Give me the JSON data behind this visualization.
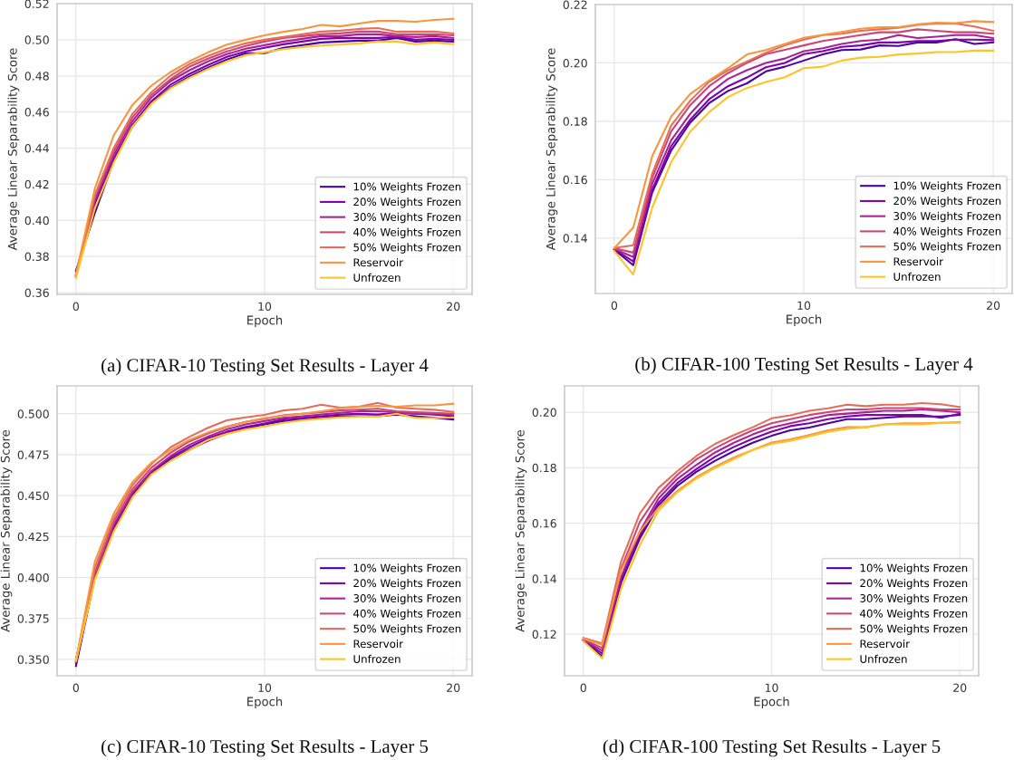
{
  "chart_data": [
    {
      "type": "line",
      "xlabel": "Epoch",
      "ylabel": "Average Linear Separability Score",
      "annotations": [
        "(a) CIFAR-10 Testing Set Results - Layer 4"
      ],
      "legend": "bottom right",
      "grid": true,
      "x": [
        0,
        1,
        2,
        3,
        4,
        5,
        6,
        7,
        8,
        9,
        10,
        11,
        12,
        13,
        14,
        15,
        16,
        17,
        18,
        19,
        20
      ],
      "xlim": [
        -1,
        21
      ],
      "xticks": [
        0,
        10,
        20
      ],
      "ylim": [
        0.359,
        0.52
      ],
      "yticks": [
        {
          "value": 0.36,
          "label": "0.36"
        },
        {
          "value": 0.38,
          "label": "0.38"
        },
        {
          "value": 0.4,
          "label": "0.40"
        },
        {
          "value": 0.42,
          "label": "0.42"
        },
        {
          "value": 0.44,
          "label": "0.44"
        },
        {
          "value": 0.46,
          "label": "0.46"
        },
        {
          "value": 0.48,
          "label": "0.48"
        },
        {
          "value": 0.5,
          "label": "0.50"
        },
        {
          "value": 0.52,
          "label": "0.52"
        }
      ],
      "series": [
        {
          "name": "10% Weights Frozen",
          "color": "#4c02a1",
          "values": [
            0.372,
            0.404,
            0.433,
            0.452,
            0.465,
            0.4735,
            0.4795,
            0.4845,
            0.489,
            0.4925,
            0.4925,
            0.4955,
            0.497,
            0.4985,
            0.499,
            0.4995,
            0.4995,
            0.501,
            0.499,
            0.4995,
            0.499
          ]
        },
        {
          "name": "20% Weights Frozen",
          "color": "#7e03a8",
          "values": [
            0.37,
            0.409,
            0.434,
            0.453,
            0.466,
            0.475,
            0.481,
            0.486,
            0.4905,
            0.4935,
            0.4955,
            0.4975,
            0.499,
            0.5005,
            0.501,
            0.501,
            0.501,
            0.5015,
            0.5,
            0.5005,
            0.5
          ]
        },
        {
          "name": "30% Weights Frozen",
          "color": "#a92395",
          "values": [
            0.369,
            0.411,
            0.436,
            0.455,
            0.468,
            0.477,
            0.483,
            0.488,
            0.492,
            0.495,
            0.497,
            0.499,
            0.5005,
            0.502,
            0.502,
            0.503,
            0.503,
            0.502,
            0.5015,
            0.502,
            0.501
          ]
        },
        {
          "name": "40% Weights Frozen",
          "color": "#cc4778",
          "values": [
            0.369,
            0.413,
            0.438,
            0.457,
            0.4695,
            0.478,
            0.485,
            0.4895,
            0.4935,
            0.4965,
            0.499,
            0.501,
            0.502,
            0.503,
            0.5035,
            0.5045,
            0.5045,
            0.503,
            0.503,
            0.503,
            0.5025
          ]
        },
        {
          "name": "50% Weights Frozen",
          "color": "#e66c5c",
          "values": [
            0.369,
            0.414,
            0.44,
            0.459,
            0.471,
            0.48,
            0.4865,
            0.491,
            0.495,
            0.498,
            0.5,
            0.5015,
            0.503,
            0.5045,
            0.505,
            0.506,
            0.5065,
            0.5045,
            0.5045,
            0.5045,
            0.5035
          ]
        },
        {
          "name": "Reservoir",
          "color": "#f89540",
          "values": [
            0.37,
            0.4175,
            0.447,
            0.464,
            0.4746,
            0.482,
            0.488,
            0.493,
            0.4973,
            0.5,
            0.5024,
            0.5044,
            0.506,
            0.5082,
            0.5074,
            0.509,
            0.5104,
            0.5104,
            0.51,
            0.511,
            0.5116
          ]
        },
        {
          "name": "Unfrozen",
          "color": "#fdc328",
          "values": [
            0.368,
            0.4066,
            0.4318,
            0.452,
            0.4645,
            0.473,
            0.4788,
            0.4838,
            0.488,
            0.4914,
            0.4931,
            0.4948,
            0.496,
            0.4968,
            0.4973,
            0.498,
            0.499,
            0.499,
            0.4976,
            0.4985,
            0.4976
          ]
        }
      ]
    },
    {
      "type": "line",
      "xlabel": "Epoch",
      "ylabel": "Average Linear Separability Score",
      "annotations": [
        "(b) CIFAR-100 Testing Set Results - Layer 4"
      ],
      "legend": "bottom right",
      "grid": true,
      "x": [
        0,
        1,
        2,
        3,
        4,
        5,
        6,
        7,
        8,
        9,
        10,
        11,
        12,
        13,
        14,
        15,
        16,
        17,
        18,
        19,
        20
      ],
      "xlim": [
        -1,
        21
      ],
      "xticks": [
        0,
        10,
        20
      ],
      "ylim": [
        0.121,
        0.22
      ],
      "yticks": [
        {
          "value": 0.14,
          "label": "0.14"
        },
        {
          "value": 0.16,
          "label": "0.16"
        },
        {
          "value": 0.18,
          "label": "0.18"
        },
        {
          "value": 0.2,
          "label": "0.20"
        },
        {
          "value": 0.22,
          "label": "0.22"
        }
      ],
      "series": [
        {
          "name": "10% Weights Frozen",
          "color": "#4c02a1",
          "values": [
            0.136,
            0.1307,
            0.1556,
            0.17,
            0.1795,
            0.1862,
            0.1904,
            0.193,
            0.1971,
            0.1987,
            0.2008,
            0.2029,
            0.2044,
            0.2046,
            0.206,
            0.2058,
            0.207,
            0.207,
            0.2081,
            0.2065,
            0.207
          ]
        },
        {
          "name": "20% Weights Frozen",
          "color": "#7e03a8",
          "values": [
            0.1362,
            0.132,
            0.1565,
            0.1715,
            0.1805,
            0.1875,
            0.192,
            0.195,
            0.1985,
            0.2,
            0.203,
            0.204,
            0.2055,
            0.206,
            0.207,
            0.207,
            0.2075,
            0.2075,
            0.208,
            0.208,
            0.2078
          ]
        },
        {
          "name": "30% Weights Frozen",
          "color": "#a92395",
          "values": [
            0.1363,
            0.1335,
            0.1585,
            0.1735,
            0.1825,
            0.1895,
            0.1945,
            0.1975,
            0.2,
            0.2015,
            0.204,
            0.205,
            0.2065,
            0.2075,
            0.208,
            0.2095,
            0.2085,
            0.209,
            0.2095,
            0.2095,
            0.2085
          ]
        },
        {
          "name": "40% Weights Frozen",
          "color": "#cc4778",
          "values": [
            0.1365,
            0.135,
            0.1605,
            0.1765,
            0.1855,
            0.192,
            0.1965,
            0.2,
            0.203,
            0.2045,
            0.206,
            0.2075,
            0.2085,
            0.2095,
            0.2105,
            0.2105,
            0.2115,
            0.211,
            0.2105,
            0.2105,
            0.21
          ]
        },
        {
          "name": "50% Weights Frozen",
          "color": "#e66c5c",
          "values": [
            0.1366,
            0.1375,
            0.162,
            0.1785,
            0.187,
            0.1935,
            0.1975,
            0.2005,
            0.2035,
            0.206,
            0.208,
            0.2095,
            0.21,
            0.211,
            0.2115,
            0.212,
            0.213,
            0.2135,
            0.2135,
            0.2125,
            0.211
          ]
        },
        {
          "name": "Reservoir",
          "color": "#f89540",
          "values": [
            0.1365,
            0.1436,
            0.168,
            0.1816,
            0.1893,
            0.194,
            0.1982,
            0.2029,
            0.2044,
            0.2065,
            0.2086,
            0.2096,
            0.2106,
            0.2117,
            0.2122,
            0.2122,
            0.2132,
            0.2138,
            0.2136,
            0.2143,
            0.214
          ]
        },
        {
          "name": "Unfrozen",
          "color": "#fdc328",
          "values": [
            0.1355,
            0.1275,
            0.1504,
            0.166,
            0.1764,
            0.1831,
            0.1883,
            0.1914,
            0.1935,
            0.1951,
            0.1982,
            0.1987,
            0.2008,
            0.2018,
            0.2021,
            0.2029,
            0.2032,
            0.2037,
            0.2037,
            0.2042,
            0.2042
          ]
        }
      ]
    },
    {
      "type": "line",
      "xlabel": "Epoch",
      "ylabel": "Average Linear Separability Score",
      "annotations": [
        "(c) CIFAR-10 Testing Set Results - Layer 5"
      ],
      "legend": "bottom right",
      "grid": true,
      "x": [
        0,
        1,
        2,
        3,
        4,
        5,
        6,
        7,
        8,
        9,
        10,
        11,
        12,
        13,
        14,
        15,
        16,
        17,
        18,
        19,
        20
      ],
      "xlim": [
        -1,
        21
      ],
      "xticks": [
        0,
        10,
        20
      ],
      "ylim": [
        0.34,
        0.517
      ],
      "yticks": [
        {
          "value": 0.35,
          "label": "0.350"
        },
        {
          "value": 0.375,
          "label": "0.375"
        },
        {
          "value": 0.4,
          "label": "0.400"
        },
        {
          "value": 0.425,
          "label": "0.425"
        },
        {
          "value": 0.45,
          "label": "0.450"
        },
        {
          "value": 0.475,
          "label": "0.475"
        },
        {
          "value": 0.5,
          "label": "0.500"
        }
      ],
      "series": [
        {
          "name": "10% Weights Frozen",
          "color": "#4c02a1",
          "values": [
            0.346,
            0.4,
            0.43,
            0.45,
            0.4635,
            0.472,
            0.478,
            0.4835,
            0.488,
            0.491,
            0.4935,
            0.4955,
            0.4965,
            0.4975,
            0.4985,
            0.4985,
            0.4985,
            0.4995,
            0.4985,
            0.4975,
            0.4965
          ]
        },
        {
          "name": "20% Weights Frozen",
          "color": "#7e03a8",
          "values": [
            0.3475,
            0.401,
            0.431,
            0.451,
            0.464,
            0.473,
            0.4795,
            0.485,
            0.489,
            0.492,
            0.494,
            0.4965,
            0.4975,
            0.4985,
            0.4995,
            0.5,
            0.4995,
            0.5005,
            0.5,
            0.4995,
            0.4985
          ]
        },
        {
          "name": "30% Weights Frozen",
          "color": "#a92395",
          "values": [
            0.349,
            0.402,
            0.432,
            0.452,
            0.465,
            0.474,
            0.481,
            0.486,
            0.4905,
            0.4935,
            0.4955,
            0.4975,
            0.4985,
            0.4995,
            0.5005,
            0.5015,
            0.5015,
            0.501,
            0.5,
            0.5,
            0.4995
          ]
        },
        {
          "name": "40% Weights Frozen",
          "color": "#cc4778",
          "values": [
            0.349,
            0.403,
            0.434,
            0.454,
            0.467,
            0.476,
            0.483,
            0.488,
            0.492,
            0.495,
            0.497,
            0.499,
            0.5,
            0.501,
            0.502,
            0.5025,
            0.503,
            0.5015,
            0.501,
            0.5005,
            0.5
          ]
        },
        {
          "name": "50% Weights Frozen",
          "color": "#e66c5c",
          "values": [
            0.349,
            0.406,
            0.4362,
            0.4564,
            0.4693,
            0.4794,
            0.4858,
            0.4914,
            0.496,
            0.4978,
            0.4993,
            0.502,
            0.503,
            0.5055,
            0.5037,
            0.5042,
            0.5066,
            0.5037,
            0.503,
            0.5024,
            0.5011
          ]
        },
        {
          "name": "Reservoir",
          "color": "#f89540",
          "values": [
            0.349,
            0.4096,
            0.439,
            0.4583,
            0.4702,
            0.4776,
            0.484,
            0.4886,
            0.4923,
            0.495,
            0.4974,
            0.4987,
            0.5,
            0.5015,
            0.5033,
            0.5042,
            0.5048,
            0.5042,
            0.5051,
            0.5051,
            0.5061
          ]
        },
        {
          "name": "Unfrozen",
          "color": "#fdc328",
          "values": [
            0.349,
            0.3985,
            0.428,
            0.449,
            0.4629,
            0.4711,
            0.4776,
            0.484,
            0.4877,
            0.4904,
            0.4923,
            0.4945,
            0.496,
            0.4969,
            0.4978,
            0.4982,
            0.4982,
            0.5,
            0.4974,
            0.4974,
            0.4978
          ]
        }
      ]
    },
    {
      "type": "line",
      "xlabel": "Epoch",
      "ylabel": "Average Linear Separability Score",
      "annotations": [
        "(d) CIFAR-100 Testing Set Results - Layer 5"
      ],
      "legend": "bottom right",
      "grid": true,
      "x": [
        0,
        1,
        2,
        3,
        4,
        5,
        6,
        7,
        8,
        9,
        10,
        11,
        12,
        13,
        14,
        15,
        16,
        17,
        18,
        19,
        20
      ],
      "xlim": [
        -1,
        21
      ],
      "xticks": [
        0,
        10,
        20
      ],
      "ylim": [
        0.105,
        0.2095
      ],
      "yticks": [
        {
          "value": 0.12,
          "label": "0.12"
        },
        {
          "value": 0.14,
          "label": "0.14"
        },
        {
          "value": 0.16,
          "label": "0.16"
        },
        {
          "value": 0.18,
          "label": "0.18"
        },
        {
          "value": 0.2,
          "label": "0.20"
        }
      ],
      "series": [
        {
          "name": "10% Weights Frozen",
          "color": "#4c02a1",
          "values": [
            0.1176,
            0.112,
            0.1385,
            0.1545,
            0.1665,
            0.1735,
            0.1785,
            0.1825,
            0.186,
            0.189,
            0.1915,
            0.1935,
            0.1945,
            0.196,
            0.1975,
            0.1975,
            0.198,
            0.1985,
            0.1985,
            0.1985,
            0.199
          ]
        },
        {
          "name": "20% Weights Frozen",
          "color": "#7e03a8",
          "values": [
            0.1178,
            0.113,
            0.1395,
            0.1555,
            0.1675,
            0.1745,
            0.1795,
            0.184,
            0.1875,
            0.1905,
            0.193,
            0.195,
            0.196,
            0.1975,
            0.1985,
            0.199,
            0.199,
            0.199,
            0.199,
            0.198,
            0.1995
          ]
        },
        {
          "name": "30% Weights Frozen",
          "color": "#a92395",
          "values": [
            0.118,
            0.114,
            0.1405,
            0.157,
            0.169,
            0.176,
            0.181,
            0.1855,
            0.189,
            0.192,
            0.1945,
            0.196,
            0.1975,
            0.199,
            0.1995,
            0.2,
            0.2005,
            0.2005,
            0.201,
            0.2005,
            0.2
          ]
        },
        {
          "name": "40% Weights Frozen",
          "color": "#cc4778",
          "values": [
            0.1182,
            0.115,
            0.1435,
            0.1605,
            0.1705,
            0.1775,
            0.183,
            0.187,
            0.1905,
            0.1935,
            0.196,
            0.1975,
            0.199,
            0.2,
            0.201,
            0.201,
            0.2015,
            0.2015,
            0.2015,
            0.201,
            0.201
          ]
        },
        {
          "name": "50% Weights Frozen",
          "color": "#e66c5c",
          "values": [
            0.1186,
            0.1167,
            0.1461,
            0.1635,
            0.1728,
            0.1788,
            0.1842,
            0.1886,
            0.1918,
            0.1946,
            0.1978,
            0.1989,
            0.2005,
            0.2014,
            0.2027,
            0.2022,
            0.2027,
            0.2027,
            0.2033,
            0.2029,
            0.2019
          ]
        },
        {
          "name": "Reservoir",
          "color": "#f89540",
          "values": [
            0.1184,
            0.1162,
            0.1429,
            0.157,
            0.1657,
            0.1717,
            0.1766,
            0.1804,
            0.1837,
            0.1864,
            0.1891,
            0.1902,
            0.1918,
            0.1935,
            0.1946,
            0.1946,
            0.1956,
            0.196,
            0.196,
            0.1962,
            0.1964
          ]
        },
        {
          "name": "Unfrozen",
          "color": "#fdc328",
          "values": [
            0.1174,
            0.1113,
            0.1363,
            0.1521,
            0.1646,
            0.1712,
            0.1761,
            0.1799,
            0.1831,
            0.1864,
            0.1886,
            0.1897,
            0.1913,
            0.1929,
            0.194,
            0.1946,
            0.1956,
            0.1956,
            0.1956,
            0.1962,
            0.1962
          ]
        }
      ]
    }
  ]
}
